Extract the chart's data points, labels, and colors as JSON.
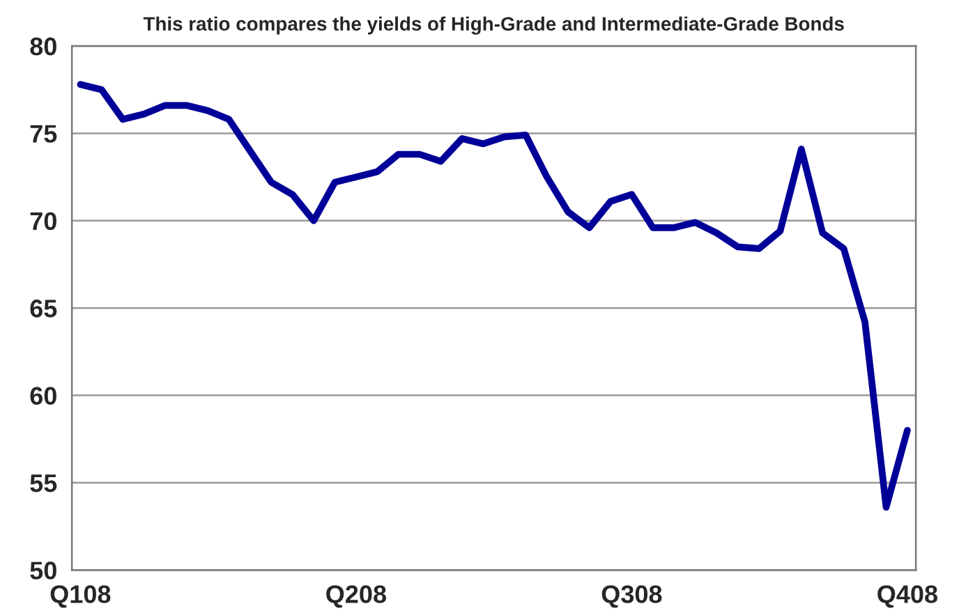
{
  "chart_data": {
    "type": "line",
    "title": "This ratio compares the yields of High-Grade and Intermediate-Grade Bonds",
    "categories": [
      "Q108",
      null,
      null,
      null,
      null,
      null,
      null,
      null,
      null,
      null,
      null,
      null,
      null,
      "Q208",
      null,
      null,
      null,
      null,
      null,
      null,
      null,
      null,
      null,
      null,
      null,
      null,
      "Q308",
      null,
      null,
      null,
      null,
      null,
      null,
      null,
      null,
      null,
      null,
      null,
      null,
      "Q408"
    ],
    "series": [
      {
        "color": "#000099",
        "values": [
          77.8,
          77.5,
          75.8,
          76.1,
          76.6,
          76.6,
          76.3,
          75.8,
          74.0,
          72.2,
          71.5,
          70.0,
          72.2,
          72.5,
          72.8,
          73.8,
          73.8,
          73.4,
          74.7,
          74.4,
          74.8,
          74.9,
          72.5,
          70.5,
          69.6,
          71.1,
          71.5,
          69.6,
          69.6,
          69.9,
          69.3,
          68.5,
          68.4,
          69.4,
          74.1,
          69.3,
          68.4,
          64.2,
          53.6,
          58.0
        ]
      }
    ],
    "ylim": [
      50,
      80
    ],
    "yticks": [
      50,
      55,
      60,
      65,
      70,
      75,
      80
    ],
    "grid": "y",
    "marker": "none",
    "line_style": "solid"
  }
}
